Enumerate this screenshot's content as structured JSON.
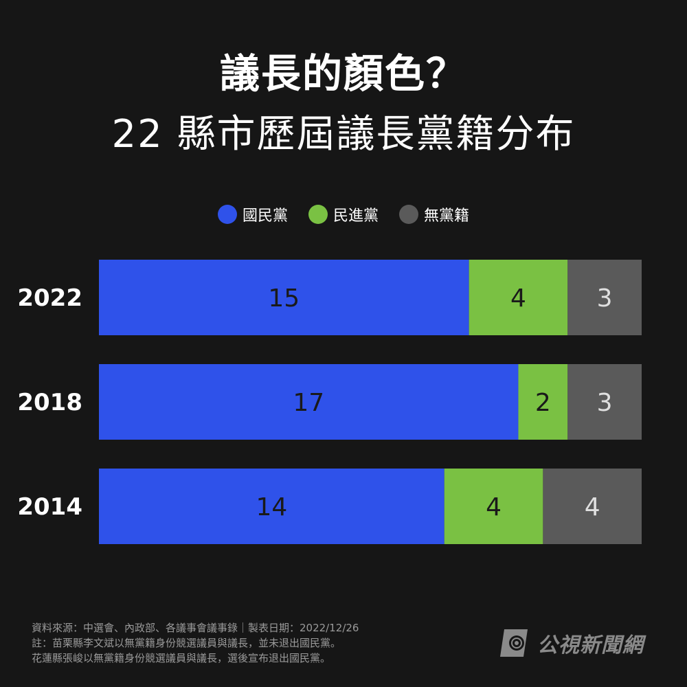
{
  "header": {
    "title": "議長的顏色？",
    "subtitle": "22 縣市歷屆議長黨籍分布"
  },
  "legend": [
    {
      "label": "國民黨",
      "color": "#2f52ea"
    },
    {
      "label": "民進黨",
      "color": "#7ac143"
    },
    {
      "label": "無黨籍",
      "color": "#5a5a5a"
    }
  ],
  "chart_data": {
    "type": "bar",
    "orientation": "horizontal",
    "stacked": true,
    "categories": [
      "2022",
      "2018",
      "2014"
    ],
    "series": [
      {
        "name": "國民黨",
        "color": "#2f52ea",
        "values": [
          15,
          17,
          14
        ]
      },
      {
        "name": "民進黨",
        "color": "#7ac143",
        "values": [
          4,
          2,
          4
        ]
      },
      {
        "name": "無黨籍",
        "color": "#5a5a5a",
        "values": [
          3,
          3,
          4
        ]
      }
    ],
    "total": 22,
    "legend_position": "top-center",
    "grid": false
  },
  "footer": {
    "line1": "資料來源：中選會、內政部、各議事會議事錄｜製表日期：2022/12/26",
    "line2": "註：苗栗縣李文斌以無黨籍身份競選議員與議長，並未退出國民黨。",
    "line3": "花蓮縣張峻以無黨籍身份競選議員與議長，選後宣布退出國民黨。"
  },
  "logo": {
    "text": "公視新聞網",
    "icon": "pts-logo-icon"
  }
}
